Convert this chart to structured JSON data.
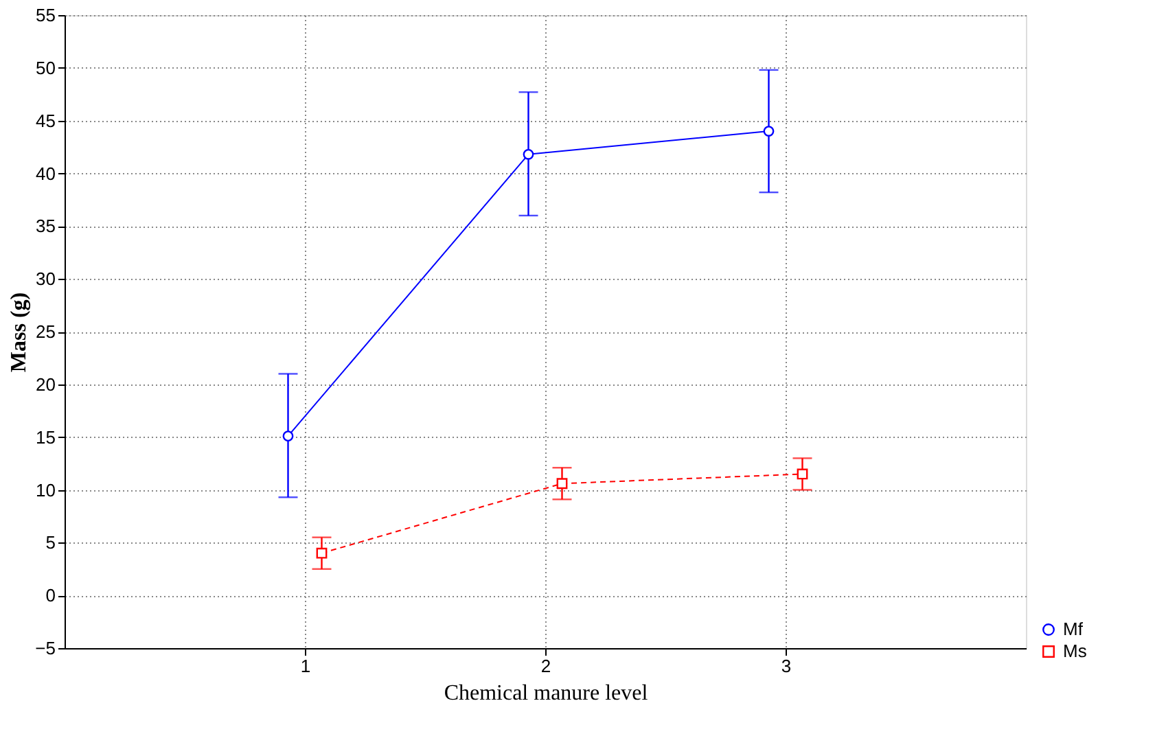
{
  "chart_data": {
    "type": "line",
    "xlabel": "Chemical manure level",
    "ylabel": "Mass (g)",
    "xlim": [
      0,
      4
    ],
    "xticks": [
      1,
      2,
      3
    ],
    "ylim": [
      -5,
      55
    ],
    "yticks": [
      -5,
      0,
      5,
      10,
      15,
      20,
      25,
      30,
      35,
      40,
      45,
      50,
      55
    ],
    "grid": true,
    "legend": "bottom right",
    "series": [
      {
        "name": "Mf",
        "color": "#0000ff",
        "x": [
          0.93,
          1.93,
          2.93
        ],
        "values": [
          15.1,
          41.8,
          44.0
        ],
        "errors": [
          [
            9.3,
            21.0
          ],
          [
            36.0,
            47.7
          ],
          [
            38.2,
            49.8
          ]
        ],
        "marker": "circle",
        "line_style": "solid"
      },
      {
        "name": "Ms",
        "color": "#ff0000",
        "x": [
          1.07,
          2.07,
          3.07
        ],
        "values": [
          4.0,
          10.6,
          11.5
        ],
        "errors": [
          [
            2.5,
            5.5
          ],
          [
            9.1,
            12.1
          ],
          [
            10.0,
            13.0
          ]
        ],
        "marker": "square",
        "line_style": "dashed"
      }
    ]
  }
}
